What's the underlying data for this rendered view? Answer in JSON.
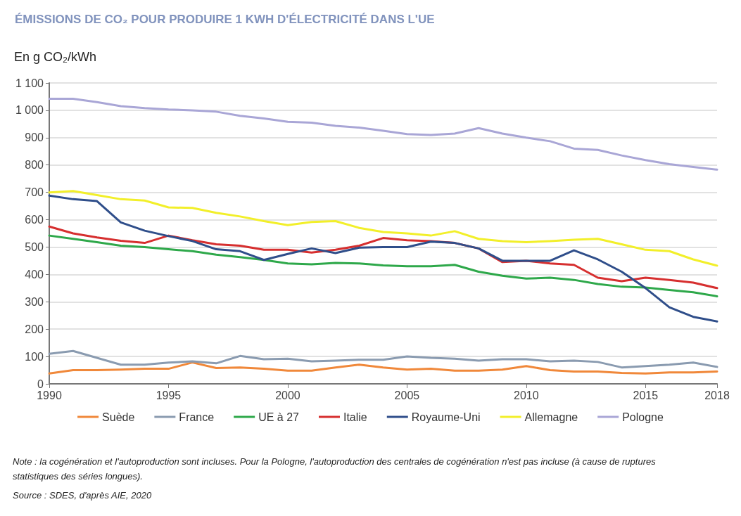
{
  "chart_data": {
    "type": "line",
    "title": "ÉMISSIONS DE CO₂ POUR PRODUIRE 1 KWH D'ÉLECTRICITÉ DANS L'UE",
    "ylabel": "En g CO₂/kWh",
    "x": [
      1990,
      1991,
      1992,
      1993,
      1994,
      1995,
      1996,
      1997,
      1998,
      1999,
      2000,
      2001,
      2002,
      2003,
      2004,
      2005,
      2006,
      2007,
      2008,
      2009,
      2010,
      2011,
      2012,
      2013,
      2014,
      2015,
      2016,
      2017,
      2018
    ],
    "xlim": [
      1990,
      2018
    ],
    "xticks": [
      1990,
      1995,
      2000,
      2005,
      2010,
      2015,
      2018
    ],
    "ylim": [
      0,
      1100
    ],
    "yticks": [
      0,
      100,
      200,
      300,
      400,
      500,
      600,
      700,
      800,
      900,
      {
        "value": 1000,
        "label": "1 000"
      },
      {
        "value": 1100,
        "label": "1 100"
      }
    ],
    "grid": "y",
    "legend": "bottom",
    "marker": "none",
    "line_style": "solid",
    "series": [
      {
        "name": "Suède",
        "color": "#f0883a",
        "values": [
          38,
          50,
          50,
          52,
          55,
          55,
          78,
          58,
          60,
          55,
          48,
          48,
          60,
          70,
          60,
          52,
          55,
          48,
          48,
          52,
          65,
          50,
          45,
          45,
          40,
          38,
          42,
          42,
          45
        ]
      },
      {
        "name": "France",
        "color": "#8a9bb0",
        "values": [
          110,
          120,
          95,
          70,
          70,
          78,
          82,
          75,
          102,
          90,
          92,
          82,
          85,
          88,
          88,
          100,
          95,
          92,
          85,
          90,
          90,
          82,
          85,
          80,
          60,
          65,
          70,
          78,
          62
        ]
      },
      {
        "name": "UE à 27",
        "color": "#2ea84a",
        "values": [
          542,
          530,
          518,
          505,
          500,
          492,
          485,
          472,
          463,
          453,
          440,
          437,
          442,
          440,
          433,
          430,
          430,
          435,
          410,
          395,
          385,
          388,
          380,
          365,
          355,
          352,
          343,
          335,
          320
        ]
      },
      {
        "name": "Italie",
        "color": "#d62f2f",
        "values": [
          575,
          550,
          535,
          523,
          515,
          542,
          525,
          510,
          505,
          490,
          490,
          480,
          490,
          505,
          533,
          525,
          522,
          515,
          495,
          445,
          450,
          440,
          435,
          388,
          375,
          388,
          380,
          370,
          350
        ]
      },
      {
        "name": "Royaume-Uni",
        "color": "#2f4e8a",
        "values": [
          688,
          675,
          668,
          590,
          560,
          540,
          522,
          492,
          485,
          453,
          475,
          495,
          478,
          498,
          500,
          500,
          520,
          515,
          495,
          450,
          450,
          450,
          488,
          455,
          410,
          350,
          280,
          245,
          228
        ]
      },
      {
        "name": "Allemagne",
        "color": "#f2ef2a",
        "values": [
          700,
          705,
          690,
          675,
          670,
          645,
          643,
          625,
          612,
          595,
          580,
          592,
          595,
          570,
          555,
          550,
          542,
          558,
          530,
          522,
          518,
          522,
          527,
          530,
          510,
          490,
          485,
          455,
          432
        ]
      },
      {
        "name": "Pologne",
        "color": "#a9a6d6",
        "values": [
          1042,
          1042,
          1030,
          1015,
          1008,
          1003,
          1000,
          995,
          980,
          970,
          958,
          955,
          943,
          937,
          925,
          913,
          910,
          915,
          935,
          915,
          900,
          887,
          860,
          855,
          835,
          818,
          803,
          793,
          783
        ]
      }
    ],
    "annotations": [
      "Note : la cogénération et l'autoproduction sont incluses. Pour la Pologne, l'autoproduction des centrales de cogénération n'est pas incluse (à cause de ruptures statistiques des séries longues).",
      "Source : SDES, d'après AIE, 2020"
    ]
  }
}
